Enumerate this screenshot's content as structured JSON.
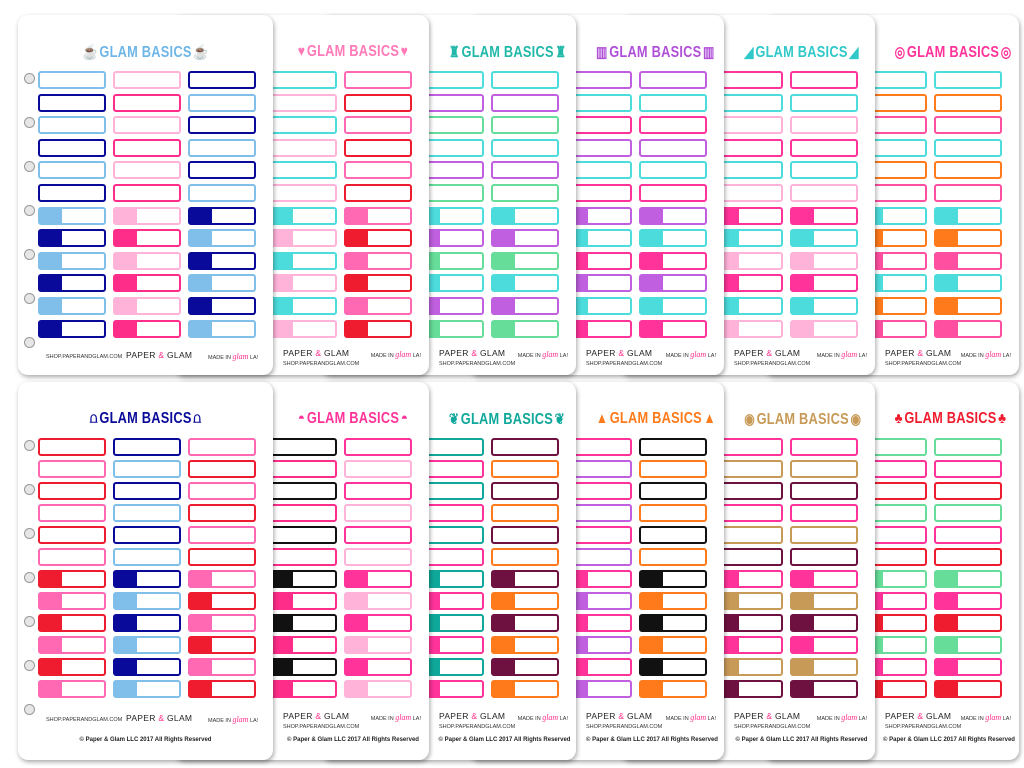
{
  "footer": {
    "shop": "SHOP.PAPERANDGLAM.COM",
    "brand_left": "PAPER ",
    "brand_amp": "&",
    "brand_right": " GLAM",
    "made_in": "MADE IN ",
    "made_glam": "glam",
    "made_la": " LA!",
    "copyright": "© Paper & Glam LLC 2017 All Rights Reserved"
  },
  "rows": [
    {
      "sheets": [
        {
          "title": "GLAM BASICS",
          "icon": "teacup-icon",
          "glyph": "☕",
          "title_color": "#6fb6e8",
          "palette": [
            "#7fbfea",
            "#ff2d8a",
            "#0a0a9a",
            "#ffb3d9"
          ]
        },
        {
          "title": "GLAM BASICS",
          "icon": "heart-icon",
          "glyph": "♥",
          "title_color": "#ff7ab8",
          "palette": [
            "#4ddcdc",
            "#ee1c2e",
            "#ffb3d9",
            "#ff69b4"
          ]
        },
        {
          "title": "GLAM BASICS",
          "icon": "top-hat-icon",
          "glyph": "♜",
          "title_color": "#20b8a8",
          "palette": [
            "#66dd99",
            "#c060e0",
            "#4ddcdc"
          ]
        },
        {
          "title": "GLAM BASICS",
          "icon": "boots-icon",
          "glyph": "▥",
          "title_color": "#b050d8",
          "palette": [
            "#c060e0",
            "#ff3399",
            "#4ddcdc"
          ]
        },
        {
          "title": "GLAM BASICS",
          "icon": "sandal-icon",
          "glyph": "◢",
          "title_color": "#30c8c8",
          "palette": [
            "#4ddcdc",
            "#ff3399",
            "#ffb3d9"
          ]
        },
        {
          "title": "GLAM BASICS",
          "icon": "flamingo-float-icon",
          "glyph": "◎",
          "title_color": "#ff3399",
          "palette": [
            "#ff4fa0",
            "#ff7a1a",
            "#4ddcdc"
          ]
        }
      ]
    },
    {
      "sheets": [
        {
          "title": "GLAM BASICS",
          "icon": "bikini-icon",
          "glyph": "⩍",
          "title_color": "#0a0a9a",
          "palette": [
            "#0a0a9a",
            "#ee1c2e",
            "#7fbfea",
            "#ff69b4"
          ]
        },
        {
          "title": "GLAM BASICS",
          "icon": "watermelon-icon",
          "glyph": "◓",
          "title_color": "#ff3399",
          "palette": [
            "#ff3399",
            "#111111",
            "#ffb3d9",
            "#ff2d8a"
          ]
        },
        {
          "title": "GLAM BASICS",
          "icon": "flip-flops-icon",
          "glyph": "❦",
          "title_color": "#10a89a",
          "palette": [
            "#ff3399",
            "#6e1040",
            "#10a89a",
            "#ff7a1a"
          ]
        },
        {
          "title": "GLAM BASICS",
          "icon": "witch-hat-icon",
          "glyph": "▲",
          "title_color": "#ff7a1a",
          "palette": [
            "#ff7a1a",
            "#c060e0",
            "#111111",
            "#ff3399"
          ]
        },
        {
          "title": "GLAM BASICS",
          "icon": "leopard-purse-icon",
          "glyph": "◉",
          "title_color": "#c89a58",
          "palette": [
            "#6e1040",
            "#c89a58",
            "#ff3399"
          ]
        },
        {
          "title": "GLAM BASICS",
          "icon": "clover-icon",
          "glyph": "♣",
          "title_color": "#ee1c2e",
          "palette": [
            "#66dd99",
            "#ee1c2e",
            "#ff3399"
          ]
        }
      ]
    }
  ]
}
